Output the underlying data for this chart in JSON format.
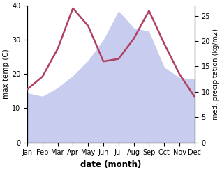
{
  "months": [
    "Jan",
    "Feb",
    "Mar",
    "Apr",
    "May",
    "Jun",
    "Jul",
    "Aug",
    "Sep",
    "Oct",
    "Nov",
    "Dec"
  ],
  "max_temp": [
    14.5,
    13.5,
    16.0,
    19.5,
    24.0,
    30.0,
    38.5,
    33.5,
    32.5,
    22.0,
    19.0,
    18.5
  ],
  "precipitation": [
    10.5,
    13.0,
    18.5,
    26.5,
    23.0,
    16.0,
    16.5,
    20.5,
    26.0,
    19.5,
    13.5,
    9.0
  ],
  "temp_color": "#b04060",
  "precip_fill_color": "#c8ccee",
  "ylabel_left": "max temp (C)",
  "ylabel_right": "med. precipitation (kg/m2)",
  "xlabel": "date (month)",
  "ylim_left": [
    0,
    40
  ],
  "ylim_right": [
    0,
    27
  ],
  "label_fontsize": 7.5,
  "tick_fontsize": 7.0
}
